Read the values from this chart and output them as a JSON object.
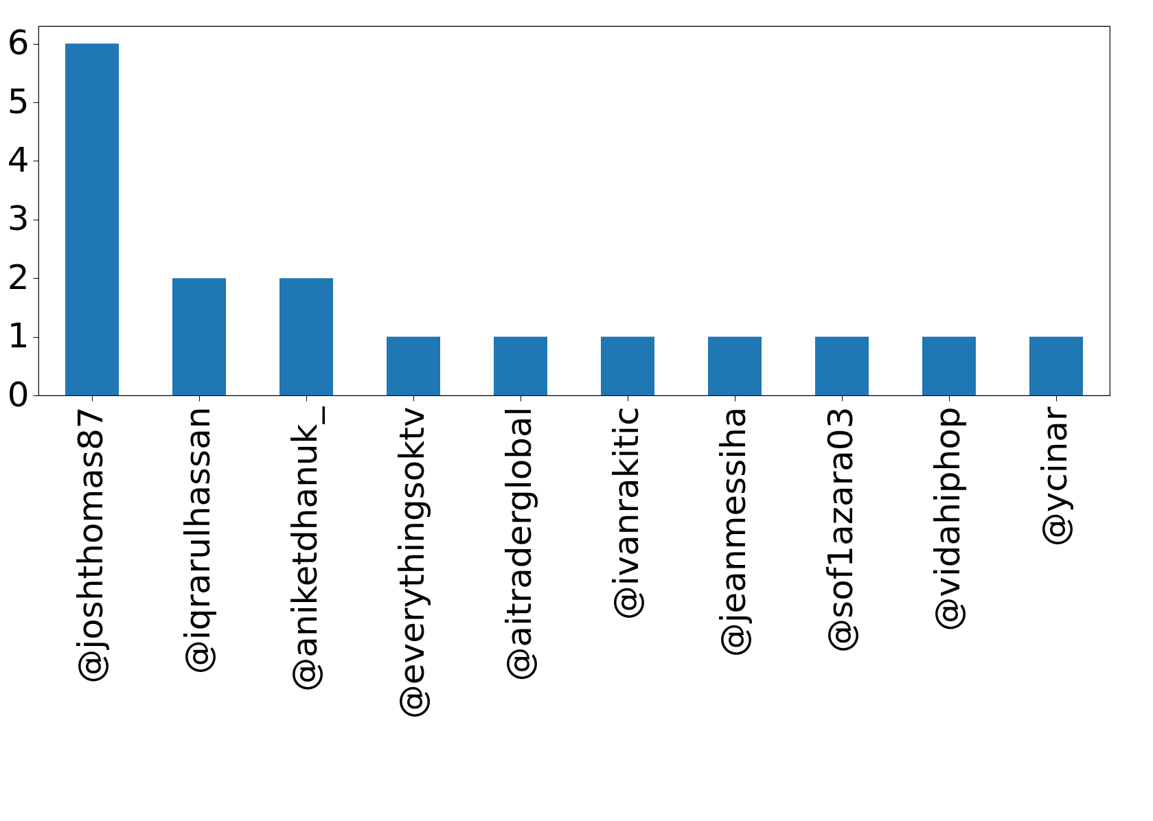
{
  "chart_data": {
    "type": "bar",
    "categories": [
      "@joshthomas87",
      "@iqrarulhassan",
      "@aniketdhanuk_",
      "@everythingsoktv",
      "@aitraderglobal",
      "@ivanrakitic",
      "@jeanmessiha",
      "@sof1azara03",
      "@vidahiphop",
      "@ycinar"
    ],
    "values": [
      6,
      2,
      2,
      1,
      1,
      1,
      1,
      1,
      1,
      1
    ],
    "color": "#1f77b4",
    "ylim": [
      0,
      6.3
    ],
    "yticks": [
      0,
      1,
      2,
      3,
      4,
      5,
      6
    ],
    "grid": false
  }
}
